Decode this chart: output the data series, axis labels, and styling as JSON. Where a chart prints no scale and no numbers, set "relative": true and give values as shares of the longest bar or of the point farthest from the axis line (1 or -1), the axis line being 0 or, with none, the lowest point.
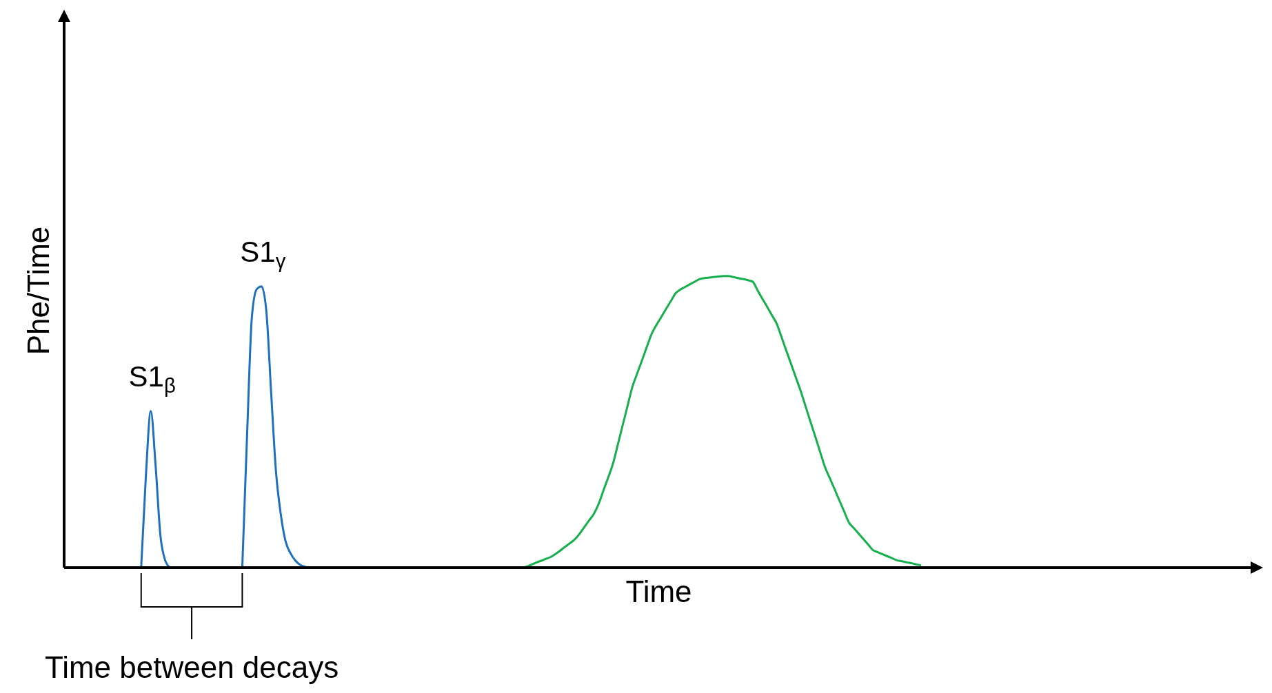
{
  "chart_data": {
    "type": "line",
    "relative": true,
    "xlabel": "Time",
    "ylabel": "Phe/Time",
    "marker": "none",
    "line_style": "solid",
    "annotations": [
      "S1$_{β}$",
      "S1$_{γ}$",
      "Time between decays"
    ],
    "categories": [
      null,
      null,
      null,
      null,
      null,
      null,
      null,
      null,
      null,
      null,
      null,
      null,
      null,
      null,
      null,
      null,
      null,
      null,
      null,
      null,
      null,
      null,
      null,
      null,
      null,
      null,
      null,
      null,
      null,
      null,
      null,
      null,
      null,
      null,
      null,
      null,
      null,
      null,
      null,
      null,
      null,
      null,
      null,
      null,
      null,
      null,
      null,
      null,
      null,
      null,
      null,
      null,
      null,
      null,
      null,
      null,
      null,
      null,
      null,
      null,
      null,
      null,
      null,
      null,
      null,
      null,
      null,
      null,
      null,
      null,
      null,
      null,
      null,
      null,
      null,
      null,
      null,
      null,
      null,
      null,
      null,
      null,
      null,
      null,
      null,
      null,
      null,
      null,
      null,
      null,
      null,
      null,
      null,
      null,
      null,
      null,
      null,
      null,
      null,
      null,
      null,
      null,
      null,
      null,
      null,
      null,
      null,
      null,
      null,
      null,
      null,
      null,
      null,
      null,
      null,
      null,
      null,
      null,
      null,
      null,
      null,
      null,
      null,
      null,
      null,
      null,
      null,
      null,
      null,
      null,
      null,
      null,
      null,
      null,
      null,
      null,
      null,
      null,
      null,
      null,
      null,
      null,
      null,
      null,
      null,
      null,
      null,
      null,
      null,
      null,
      null,
      null,
      null,
      null,
      null,
      null,
      null,
      null,
      null,
      null,
      null,
      null,
      null,
      null,
      null,
      null,
      null,
      null,
      null,
      null,
      null,
      null,
      null,
      null,
      null,
      null,
      null,
      null,
      null,
      null,
      null,
      null,
      null,
      null,
      null,
      null,
      null,
      null,
      null,
      null,
      null,
      null,
      null,
      null,
      null,
      null,
      null,
      null,
      null,
      null,
      null,
      null,
      null,
      null,
      null,
      null,
      null,
      null,
      null,
      null,
      null,
      null,
      null,
      null,
      null,
      null,
      null,
      null,
      null,
      null,
      null,
      null,
      null,
      null,
      null,
      null,
      null,
      null,
      null,
      null,
      null,
      null,
      null,
      null,
      null,
      null,
      null,
      null,
      null,
      null,
      null,
      null,
      null,
      null,
      null,
      null,
      null,
      null
    ],
    "series": [
      {
        "color": "#1f6fbf",
        "values": [
          null,
          null,
          null,
          null,
          null,
          null,
          null,
          null,
          null,
          null,
          null,
          null,
          null,
          null,
          null,
          null,
          0,
          0.32,
          0.537,
          0.35,
          0.11,
          0.025,
          0,
          null,
          null,
          null,
          null,
          null,
          null,
          null,
          null,
          null,
          null,
          null,
          null,
          null,
          null,
          null,
          null,
          null,
          null,
          null,
          null,
          null,
          null,
          null,
          null,
          null,
          null,
          null,
          null,
          null,
          null,
          null,
          null,
          null,
          null,
          null,
          null,
          null,
          null,
          null,
          null,
          null,
          null,
          null,
          null,
          null,
          null,
          null,
          null,
          null,
          null,
          null,
          null,
          null,
          null,
          null,
          null,
          null,
          null,
          null,
          null,
          null,
          null,
          null,
          null,
          null,
          null,
          null,
          null,
          null,
          null,
          null,
          null,
          null,
          null,
          null,
          null,
          null,
          null,
          null,
          null,
          null,
          null,
          null,
          null,
          null,
          null,
          null,
          null,
          null,
          null,
          null,
          null,
          null,
          null,
          null,
          null,
          null,
          null,
          null,
          null,
          null,
          null,
          null,
          null,
          null,
          null,
          null,
          null,
          null,
          null,
          null,
          null,
          null,
          null,
          null,
          null,
          null,
          null,
          null,
          null,
          null,
          null,
          null,
          null,
          null,
          null,
          null,
          null,
          null,
          null,
          null,
          null,
          null,
          null,
          null,
          null,
          null,
          null,
          null,
          null,
          null,
          null,
          null,
          null,
          null,
          null,
          null,
          null,
          null,
          null,
          null,
          null,
          null,
          null,
          null,
          null,
          null,
          null,
          null,
          null,
          null,
          null,
          null,
          null,
          null,
          null,
          null,
          null,
          null,
          null,
          null,
          null,
          null,
          null,
          null,
          null,
          null,
          null,
          null,
          null,
          null,
          null,
          null,
          null,
          null,
          null,
          null,
          null,
          null,
          null,
          null,
          null,
          null,
          null,
          null,
          null,
          null,
          null,
          null,
          null,
          null,
          null,
          null,
          null,
          null,
          null,
          null,
          null,
          null,
          null,
          null,
          null,
          null,
          null,
          null,
          null,
          null,
          null,
          null,
          null,
          null,
          null,
          null,
          null,
          null
        ]
      },
      {
        "color": "#1f6fbf",
        "values": [
          null,
          null,
          null,
          null,
          null,
          null,
          null,
          null,
          null,
          null,
          null,
          null,
          null,
          null,
          null,
          null,
          null,
          null,
          null,
          null,
          null,
          null,
          null,
          null,
          null,
          null,
          null,
          null,
          null,
          null,
          null,
          null,
          null,
          null,
          null,
          null,
          null,
          0,
          0.455,
          0.86,
          0.955,
          0.965,
          0.88,
          0.6,
          0.33,
          0.183,
          0.09,
          0.05,
          0.025,
          0.01,
          0.003,
          0,
          0,
          null,
          null,
          null,
          null,
          null,
          null,
          null,
          null,
          null,
          null,
          null,
          null,
          null,
          null,
          null,
          null,
          null,
          null,
          null,
          null,
          null,
          null,
          null,
          null,
          null,
          null,
          null,
          null,
          null,
          null,
          null,
          null,
          null,
          null,
          null,
          null,
          null,
          null,
          null,
          null,
          null,
          null,
          null,
          null,
          null,
          null,
          null,
          null,
          null,
          null,
          null,
          null,
          null,
          null,
          null,
          null,
          null,
          null,
          null,
          null,
          null,
          null,
          null,
          null,
          null,
          null,
          null,
          null,
          null,
          null,
          null,
          null,
          null,
          null,
          null,
          null,
          null,
          null,
          null,
          null,
          null,
          null,
          null,
          null,
          null,
          null,
          null,
          null,
          null,
          null,
          null,
          null,
          null,
          null,
          null,
          null,
          null,
          null,
          null,
          null,
          null,
          null,
          null,
          null,
          null,
          null,
          null,
          null,
          null,
          null,
          null,
          null,
          null,
          null,
          null,
          null,
          null,
          null,
          null,
          null,
          null,
          null,
          null,
          null,
          null,
          null,
          null,
          null,
          null,
          null,
          null,
          null,
          null,
          null,
          null,
          null,
          null,
          null,
          null,
          null,
          null,
          null,
          null,
          null,
          null,
          null,
          null,
          null,
          null,
          null,
          null,
          null,
          null,
          null,
          null,
          null,
          null,
          null,
          null,
          null,
          null,
          null,
          null,
          null,
          null,
          null,
          null,
          null,
          null,
          null,
          null,
          null,
          null,
          null,
          null,
          null,
          null,
          null,
          null,
          null,
          null,
          null,
          null,
          null,
          null,
          null,
          null,
          null,
          null,
          null,
          null,
          null,
          null,
          null,
          null
        ]
      },
      {
        "color": "#14b04c",
        "values": [
          null,
          null,
          null,
          null,
          null,
          null,
          null,
          null,
          null,
          null,
          null,
          null,
          null,
          null,
          null,
          null,
          null,
          null,
          null,
          null,
          null,
          null,
          null,
          null,
          null,
          null,
          null,
          null,
          null,
          null,
          null,
          null,
          null,
          null,
          null,
          null,
          null,
          null,
          null,
          null,
          null,
          null,
          null,
          null,
          null,
          null,
          null,
          null,
          null,
          null,
          null,
          null,
          null,
          null,
          null,
          null,
          null,
          null,
          null,
          null,
          null,
          null,
          null,
          null,
          null,
          null,
          null,
          null,
          null,
          null,
          null,
          null,
          null,
          null,
          null,
          null,
          null,
          null,
          null,
          null,
          null,
          null,
          null,
          null,
          null,
          null,
          null,
          null,
          null,
          null,
          null,
          null,
          null,
          null,
          null,
          0,
          0.003,
          0.01,
          0.017,
          0.023,
          0.03,
          0.036,
          0.046,
          0.058,
          0.071,
          0.083,
          0.096,
          0.115,
          0.138,
          0.161,
          0.184,
          0.218,
          0.264,
          0.309,
          0.357,
          0.422,
          0.488,
          0.553,
          0.619,
          0.665,
          0.71,
          0.756,
          0.801,
          0.832,
          0.859,
          0.887,
          0.914,
          0.941,
          0.954,
          0.963,
          0.972,
          0.981,
          0.99,
          0.993,
          0.995,
          0.997,
          0.999,
          1,
          1,
          0.997,
          0.993,
          0.99,
          0.986,
          0.981,
          0.952,
          0.923,
          0.895,
          0.866,
          0.837,
          0.791,
          0.744,
          0.698,
          0.651,
          0.605,
          0.553,
          0.501,
          0.45,
          0.398,
          0.346,
          0.308,
          0.27,
          0.231,
          0.193,
          0.155,
          0.136,
          0.117,
          0.098,
          0.079,
          0.06,
          0.053,
          0.046,
          0.039,
          0.032,
          0.025,
          0.022,
          0.018,
          0.015,
          0.011,
          0.008,
          null,
          null,
          null,
          null,
          null,
          null,
          null,
          null,
          null,
          null,
          null,
          null,
          null,
          null,
          null,
          null,
          null,
          null,
          null,
          null,
          null,
          null,
          null,
          null,
          null,
          null,
          null,
          null,
          null,
          null,
          null,
          null,
          null,
          null,
          null,
          null,
          null,
          null,
          null,
          null,
          null,
          null,
          null,
          null,
          null,
          null,
          null,
          null,
          null,
          null,
          null,
          null,
          null,
          null,
          null,
          null,
          null,
          null,
          null,
          null,
          null,
          null,
          null,
          null,
          null,
          null,
          null,
          null,
          null
        ]
      }
    ]
  }
}
